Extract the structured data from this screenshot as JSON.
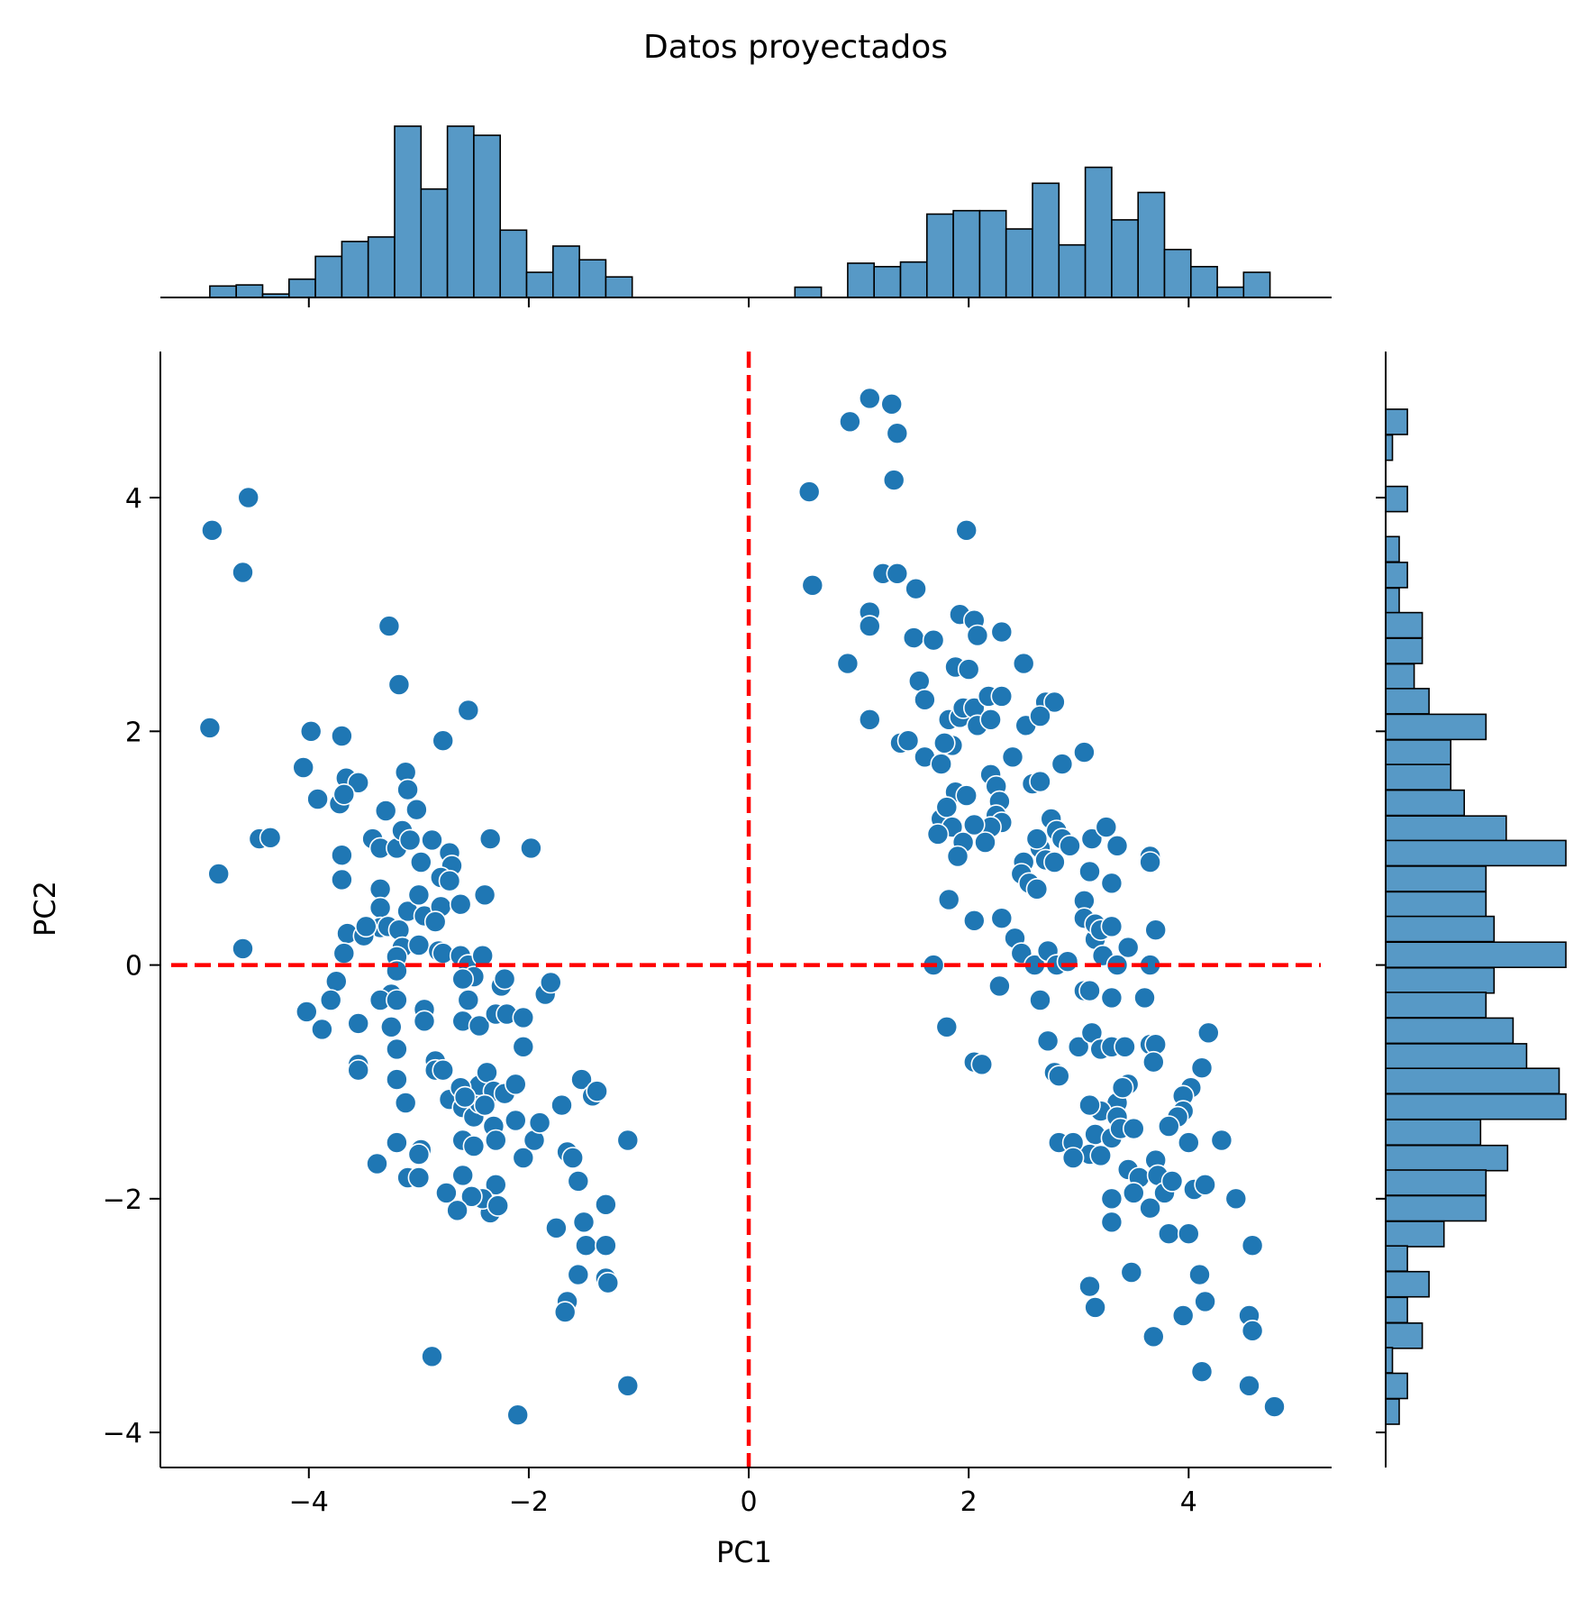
{
  "chart_data": {
    "type": "scatter",
    "title": "Datos proyectados",
    "xlabel": "PC1",
    "ylabel": "PC2",
    "xlim": [
      -5.35,
      5.3
    ],
    "ylim": [
      -4.3,
      5.25
    ],
    "xticks": [
      -4,
      -2,
      0,
      2,
      4
    ],
    "yticks": [
      -4,
      -2,
      0,
      2,
      4
    ],
    "xtick_labels": [
      "−4",
      "−2",
      "0",
      "2",
      "4"
    ],
    "ytick_labels": [
      "−4",
      "−2",
      "0",
      "2",
      "4"
    ],
    "grid": false,
    "legend": "none",
    "colors": {
      "points": "#1f77b4",
      "hist_fill": "#5799c6",
      "reference_lines": "#ff0000"
    },
    "reference_lines": {
      "vertical_x": 0,
      "horizontal_y": 0,
      "style": "dashed"
    },
    "points": [
      [
        -4.88,
        3.72
      ],
      [
        -4.55,
        4.0
      ],
      [
        -4.6,
        3.36
      ],
      [
        -4.9,
        2.03
      ],
      [
        -4.82,
        0.78
      ],
      [
        -4.6,
        0.14
      ],
      [
        -4.45,
        1.08
      ],
      [
        -4.35,
        1.09
      ],
      [
        -4.05,
        1.69
      ],
      [
        -3.98,
        2.0
      ],
      [
        -3.7,
        1.96
      ],
      [
        -3.92,
        1.42
      ],
      [
        -3.72,
        1.38
      ],
      [
        -3.66,
        1.6
      ],
      [
        -3.55,
        1.56
      ],
      [
        -3.68,
        1.46
      ],
      [
        -3.7,
        0.94
      ],
      [
        -3.7,
        0.73
      ],
      [
        -3.65,
        0.27
      ],
      [
        -3.68,
        0.1
      ],
      [
        -3.75,
        -0.14
      ],
      [
        -3.8,
        -0.3
      ],
      [
        -3.88,
        -0.55
      ],
      [
        -4.02,
        -0.4
      ],
      [
        -3.55,
        -0.5
      ],
      [
        -3.55,
        -0.85
      ],
      [
        -3.55,
        -0.9
      ],
      [
        -3.27,
        2.9
      ],
      [
        -3.18,
        2.4
      ],
      [
        -2.55,
        2.18
      ],
      [
        -2.78,
        1.92
      ],
      [
        -3.12,
        1.65
      ],
      [
        -3.1,
        1.5
      ],
      [
        -3.02,
        1.33
      ],
      [
        -3.3,
        1.32
      ],
      [
        -3.42,
        1.08
      ],
      [
        -3.35,
        1.0
      ],
      [
        -3.2,
        1.0
      ],
      [
        -3.15,
        1.15
      ],
      [
        -3.08,
        1.07
      ],
      [
        -2.88,
        1.07
      ],
      [
        -2.72,
        0.96
      ],
      [
        -2.98,
        0.88
      ],
      [
        -2.7,
        0.85
      ],
      [
        -2.8,
        0.75
      ],
      [
        -2.72,
        0.72
      ],
      [
        -2.35,
        1.08
      ],
      [
        -1.98,
        1.0
      ],
      [
        -3.35,
        0.65
      ],
      [
        -3.35,
        0.49
      ],
      [
        -3.1,
        0.46
      ],
      [
        -3.0,
        0.6
      ],
      [
        -2.95,
        0.42
      ],
      [
        -2.8,
        0.5
      ],
      [
        -2.62,
        0.52
      ],
      [
        -2.4,
        0.6
      ],
      [
        -3.35,
        0.32
      ],
      [
        -3.5,
        0.25
      ],
      [
        -3.48,
        0.33
      ],
      [
        -3.28,
        0.33
      ],
      [
        -3.18,
        0.3
      ],
      [
        -3.15,
        0.15
      ],
      [
        -3.2,
        0.07
      ],
      [
        -3.0,
        0.17
      ],
      [
        -2.85,
        0.37
      ],
      [
        -2.82,
        0.12
      ],
      [
        -2.78,
        0.1
      ],
      [
        -2.62,
        0.08
      ],
      [
        -2.55,
        0.0
      ],
      [
        -2.42,
        0.08
      ],
      [
        -2.5,
        -0.1
      ],
      [
        -2.6,
        -0.12
      ],
      [
        -2.25,
        -0.18
      ],
      [
        -2.22,
        -0.12
      ],
      [
        -3.2,
        -0.05
      ],
      [
        -3.25,
        -0.25
      ],
      [
        -3.35,
        -0.3
      ],
      [
        -3.2,
        -0.3
      ],
      [
        -3.25,
        -0.53
      ],
      [
        -3.2,
        -0.72
      ],
      [
        -2.95,
        -0.38
      ],
      [
        -2.95,
        -0.48
      ],
      [
        -2.6,
        -0.48
      ],
      [
        -2.55,
        -0.3
      ],
      [
        -2.45,
        -0.52
      ],
      [
        -2.3,
        -0.42
      ],
      [
        -2.2,
        -0.42
      ],
      [
        -2.05,
        -0.45
      ],
      [
        -2.05,
        -0.7
      ],
      [
        -1.85,
        -0.25
      ],
      [
        -1.8,
        -0.15
      ],
      [
        -3.2,
        -0.98
      ],
      [
        -3.12,
        -1.18
      ],
      [
        -3.2,
        -1.52
      ],
      [
        -3.38,
        -1.7
      ],
      [
        -3.1,
        -1.82
      ],
      [
        -3.0,
        -1.82
      ],
      [
        -2.98,
        -1.58
      ],
      [
        -3.0,
        -1.62
      ],
      [
        -2.85,
        -0.82
      ],
      [
        -2.85,
        -0.9
      ],
      [
        -2.78,
        -0.9
      ],
      [
        -2.72,
        -1.15
      ],
      [
        -2.6,
        -1.22
      ],
      [
        -2.6,
        -1.5
      ],
      [
        -2.5,
        -1.3
      ],
      [
        -2.45,
        -1.18
      ],
      [
        -2.45,
        -1.03
      ],
      [
        -2.38,
        -0.92
      ],
      [
        -2.32,
        -1.08
      ],
      [
        -2.32,
        -1.38
      ],
      [
        -2.3,
        -1.5
      ],
      [
        -2.22,
        -1.1
      ],
      [
        -2.12,
        -1.02
      ],
      [
        -2.12,
        -1.33
      ],
      [
        -2.05,
        -1.65
      ],
      [
        -1.95,
        -1.5
      ],
      [
        -1.9,
        -1.35
      ],
      [
        -2.3,
        -1.88
      ],
      [
        -2.35,
        -2.12
      ],
      [
        -2.42,
        -2.0
      ],
      [
        -2.52,
        -1.98
      ],
      [
        -2.65,
        -2.1
      ],
      [
        -2.75,
        -1.95
      ],
      [
        -2.5,
        -1.55
      ],
      [
        -2.6,
        -1.8
      ],
      [
        -2.28,
        -2.06
      ],
      [
        -2.62,
        -1.05
      ],
      [
        -2.58,
        -1.13
      ],
      [
        -2.4,
        -1.2
      ],
      [
        -1.7,
        -1.2
      ],
      [
        -1.65,
        -1.6
      ],
      [
        -1.6,
        -1.65
      ],
      [
        -1.55,
        -1.85
      ],
      [
        -1.52,
        -0.98
      ],
      [
        -1.42,
        -1.12
      ],
      [
        -1.38,
        -1.08
      ],
      [
        -1.1,
        -1.5
      ],
      [
        -1.75,
        -2.25
      ],
      [
        -1.5,
        -2.2
      ],
      [
        -1.48,
        -2.4
      ],
      [
        -1.55,
        -2.65
      ],
      [
        -1.65,
        -2.88
      ],
      [
        -1.67,
        -2.97
      ],
      [
        -1.3,
        -2.05
      ],
      [
        -1.3,
        -2.4
      ],
      [
        -1.3,
        -2.68
      ],
      [
        -1.28,
        -2.72
      ],
      [
        -1.1,
        -3.6
      ],
      [
        -2.88,
        -3.35
      ],
      [
        -2.1,
        -3.85
      ],
      [
        0.55,
        4.05
      ],
      [
        0.58,
        3.25
      ],
      [
        0.92,
        4.65
      ],
      [
        1.1,
        4.85
      ],
      [
        1.3,
        4.8
      ],
      [
        1.35,
        4.55
      ],
      [
        1.32,
        4.15
      ],
      [
        0.9,
        2.58
      ],
      [
        1.1,
        2.1
      ],
      [
        1.1,
        3.02
      ],
      [
        1.1,
        2.9
      ],
      [
        1.1,
        2.9
      ],
      [
        1.22,
        3.35
      ],
      [
        1.35,
        3.35
      ],
      [
        1.52,
        3.22
      ],
      [
        1.98,
        3.72
      ],
      [
        1.5,
        2.8
      ],
      [
        1.68,
        2.78
      ],
      [
        1.88,
        2.55
      ],
      [
        2.0,
        2.53
      ],
      [
        1.92,
        3.0
      ],
      [
        2.05,
        2.95
      ],
      [
        2.08,
        2.82
      ],
      [
        2.3,
        2.85
      ],
      [
        2.5,
        2.58
      ],
      [
        1.55,
        2.43
      ],
      [
        1.6,
        2.27
      ],
      [
        1.82,
        2.1
      ],
      [
        1.92,
        2.12
      ],
      [
        1.95,
        2.2
      ],
      [
        2.05,
        2.2
      ],
      [
        2.08,
        2.05
      ],
      [
        2.18,
        2.3
      ],
      [
        2.3,
        2.3
      ],
      [
        2.2,
        2.1
      ],
      [
        2.52,
        2.05
      ],
      [
        2.7,
        2.25
      ],
      [
        2.78,
        2.25
      ],
      [
        2.65,
        2.13
      ],
      [
        1.38,
        1.9
      ],
      [
        1.45,
        1.92
      ],
      [
        1.6,
        1.78
      ],
      [
        1.75,
        1.72
      ],
      [
        1.85,
        1.88
      ],
      [
        1.78,
        1.9
      ],
      [
        2.2,
        1.63
      ],
      [
        2.25,
        1.53
      ],
      [
        2.4,
        1.78
      ],
      [
        2.58,
        1.55
      ],
      [
        2.65,
        1.57
      ],
      [
        2.85,
        1.72
      ],
      [
        3.05,
        1.82
      ],
      [
        1.88,
        1.48
      ],
      [
        1.98,
        1.45
      ],
      [
        2.28,
        1.4
      ],
      [
        2.25,
        1.28
      ],
      [
        2.3,
        1.22
      ],
      [
        2.2,
        1.18
      ],
      [
        1.75,
        1.25
      ],
      [
        1.8,
        1.35
      ],
      [
        1.85,
        1.18
      ],
      [
        1.95,
        1.05
      ],
      [
        2.05,
        1.2
      ],
      [
        2.15,
        1.05
      ],
      [
        1.72,
        1.12
      ],
      [
        1.9,
        0.93
      ],
      [
        2.75,
        1.25
      ],
      [
        2.8,
        1.15
      ],
      [
        2.85,
        1.08
      ],
      [
        2.65,
        1.0
      ],
      [
        2.7,
        0.9
      ],
      [
        2.62,
        1.08
      ],
      [
        2.5,
        0.88
      ],
      [
        2.48,
        0.78
      ],
      [
        2.55,
        0.7
      ],
      [
        2.62,
        0.65
      ],
      [
        2.78,
        0.88
      ],
      [
        2.92,
        1.02
      ],
      [
        3.12,
        1.08
      ],
      [
        3.25,
        1.18
      ],
      [
        3.35,
        1.02
      ],
      [
        3.65,
        0.93
      ],
      [
        3.65,
        0.88
      ],
      [
        3.1,
        0.8
      ],
      [
        3.3,
        0.7
      ],
      [
        1.82,
        0.56
      ],
      [
        2.05,
        0.38
      ],
      [
        2.3,
        0.4
      ],
      [
        2.42,
        0.23
      ],
      [
        2.48,
        0.1
      ],
      [
        2.6,
        0.0
      ],
      [
        2.72,
        0.12
      ],
      [
        2.8,
        0.0
      ],
      [
        2.9,
        0.03
      ],
      [
        3.05,
        0.55
      ],
      [
        3.05,
        0.4
      ],
      [
        3.15,
        0.22
      ],
      [
        3.15,
        0.35
      ],
      [
        3.2,
        0.3
      ],
      [
        3.3,
        0.33
      ],
      [
        3.45,
        0.15
      ],
      [
        3.7,
        0.3
      ],
      [
        3.22,
        0.08
      ],
      [
        3.35,
        0.0
      ],
      [
        3.65,
        0.0
      ],
      [
        1.68,
        0.0
      ],
      [
        2.28,
        -0.18
      ],
      [
        2.65,
        -0.3
      ],
      [
        3.05,
        -0.22
      ],
      [
        3.1,
        -0.22
      ],
      [
        3.3,
        -0.28
      ],
      [
        3.6,
        -0.28
      ],
      [
        1.8,
        -0.53
      ],
      [
        2.05,
        -0.83
      ],
      [
        2.12,
        -0.85
      ],
      [
        2.72,
        -0.65
      ],
      [
        2.78,
        -0.92
      ],
      [
        2.82,
        -0.95
      ],
      [
        3.0,
        -0.7
      ],
      [
        3.12,
        -0.58
      ],
      [
        3.2,
        -0.72
      ],
      [
        3.3,
        -0.7
      ],
      [
        3.42,
        -0.7
      ],
      [
        3.65,
        -0.68
      ],
      [
        3.7,
        -0.68
      ],
      [
        3.68,
        -0.83
      ],
      [
        3.45,
        -1.02
      ],
      [
        3.35,
        -1.18
      ],
      [
        3.2,
        -1.25
      ],
      [
        3.15,
        -1.45
      ],
      [
        3.1,
        -1.2
      ],
      [
        3.35,
        -1.3
      ],
      [
        3.4,
        -1.05
      ],
      [
        4.02,
        -1.05
      ],
      [
        4.12,
        -0.88
      ],
      [
        4.18,
        -0.58
      ],
      [
        3.95,
        -1.12
      ],
      [
        3.95,
        -1.25
      ],
      [
        3.9,
        -1.3
      ],
      [
        3.82,
        -1.38
      ],
      [
        4.0,
        -1.52
      ],
      [
        4.3,
        -1.5
      ],
      [
        3.1,
        -1.62
      ],
      [
        3.3,
        -1.48
      ],
      [
        3.45,
        -1.75
      ],
      [
        3.55,
        -1.82
      ],
      [
        3.7,
        -1.67
      ],
      [
        3.72,
        -1.8
      ],
      [
        3.78,
        -1.95
      ],
      [
        3.85,
        -1.85
      ],
      [
        4.0,
        -1.52
      ],
      [
        4.05,
        -1.92
      ],
      [
        4.15,
        -1.88
      ],
      [
        4.43,
        -2.0
      ],
      [
        4.58,
        -2.4
      ],
      [
        2.82,
        -1.52
      ],
      [
        2.95,
        -1.52
      ],
      [
        2.95,
        -1.65
      ],
      [
        3.2,
        -1.63
      ],
      [
        3.38,
        -1.4
      ],
      [
        3.5,
        -1.4
      ],
      [
        3.3,
        -2.0
      ],
      [
        3.5,
        -1.95
      ],
      [
        3.65,
        -2.08
      ],
      [
        3.82,
        -2.3
      ],
      [
        4.0,
        -2.3
      ],
      [
        3.3,
        -2.2
      ],
      [
        3.48,
        -2.63
      ],
      [
        4.1,
        -2.65
      ],
      [
        3.1,
        -2.75
      ],
      [
        3.15,
        -2.93
      ],
      [
        3.68,
        -3.18
      ],
      [
        3.95,
        -3.0
      ],
      [
        4.15,
        -2.88
      ],
      [
        4.55,
        -3.0
      ],
      [
        4.58,
        -3.13
      ],
      [
        4.12,
        -3.48
      ],
      [
        4.55,
        -3.6
      ],
      [
        4.78,
        -3.78
      ]
    ],
    "marginal_x_histogram": {
      "bin_width": 0.24,
      "bins": [
        [
          -4.9,
          1
        ],
        [
          -4.66,
          1.1
        ],
        [
          -4.42,
          0.3
        ],
        [
          -4.18,
          1.6
        ],
        [
          -3.94,
          3.6
        ],
        [
          -3.7,
          4.9
        ],
        [
          -3.46,
          5.3
        ],
        [
          -3.22,
          15
        ],
        [
          -2.98,
          9.5
        ],
        [
          -2.74,
          15
        ],
        [
          -2.5,
          14.2
        ],
        [
          -2.26,
          5.9
        ],
        [
          -2.02,
          2.2
        ],
        [
          -1.78,
          4.5
        ],
        [
          -1.54,
          3.3
        ],
        [
          -1.3,
          1.8
        ],
        [
          0.42,
          0.9
        ],
        [
          0.9,
          3.0
        ],
        [
          1.14,
          2.7
        ],
        [
          1.38,
          3.1
        ],
        [
          1.62,
          7.3
        ],
        [
          1.86,
          7.6
        ],
        [
          2.1,
          7.6
        ],
        [
          2.34,
          6.0
        ],
        [
          2.58,
          10.0
        ],
        [
          2.82,
          4.6
        ],
        [
          3.06,
          11.4
        ],
        [
          3.3,
          6.8
        ],
        [
          3.54,
          9.2
        ],
        [
          3.78,
          4.2
        ],
        [
          4.02,
          2.7
        ],
        [
          4.26,
          0.9
        ],
        [
          4.5,
          2.2
        ]
      ]
    },
    "marginal_y_histogram": {
      "bin_width": 0.216,
      "bins": [
        [
          4.54,
          1.6
        ],
        [
          4.32,
          0.5
        ],
        [
          3.88,
          1.6
        ],
        [
          3.45,
          1.0
        ],
        [
          3.23,
          1.6
        ],
        [
          3.01,
          1.0
        ],
        [
          2.8,
          2.7
        ],
        [
          2.58,
          2.7
        ],
        [
          2.36,
          2.1
        ],
        [
          2.15,
          3.2
        ],
        [
          1.93,
          7.4
        ],
        [
          1.71,
          4.8
        ],
        [
          1.5,
          4.8
        ],
        [
          1.28,
          5.8
        ],
        [
          1.06,
          8.9
        ],
        [
          0.85,
          13.3
        ],
        [
          0.63,
          7.4
        ],
        [
          0.41,
          7.4
        ],
        [
          0.2,
          8.0
        ],
        [
          -0.02,
          13.3
        ],
        [
          -0.24,
          8.0
        ],
        [
          -0.45,
          7.4
        ],
        [
          -0.67,
          9.4
        ],
        [
          -0.89,
          10.4
        ],
        [
          -1.1,
          12.8
        ],
        [
          -1.32,
          13.3
        ],
        [
          -1.54,
          7.0
        ],
        [
          -1.76,
          9.0
        ],
        [
          -1.97,
          7.4
        ],
        [
          -2.19,
          7.4
        ],
        [
          -2.41,
          4.3
        ],
        [
          -2.62,
          1.6
        ],
        [
          -2.84,
          3.2
        ],
        [
          -3.06,
          1.6
        ],
        [
          -3.28,
          2.7
        ],
        [
          -3.49,
          0.5
        ],
        [
          -3.71,
          1.6
        ],
        [
          -3.93,
          1.0
        ]
      ]
    }
  }
}
